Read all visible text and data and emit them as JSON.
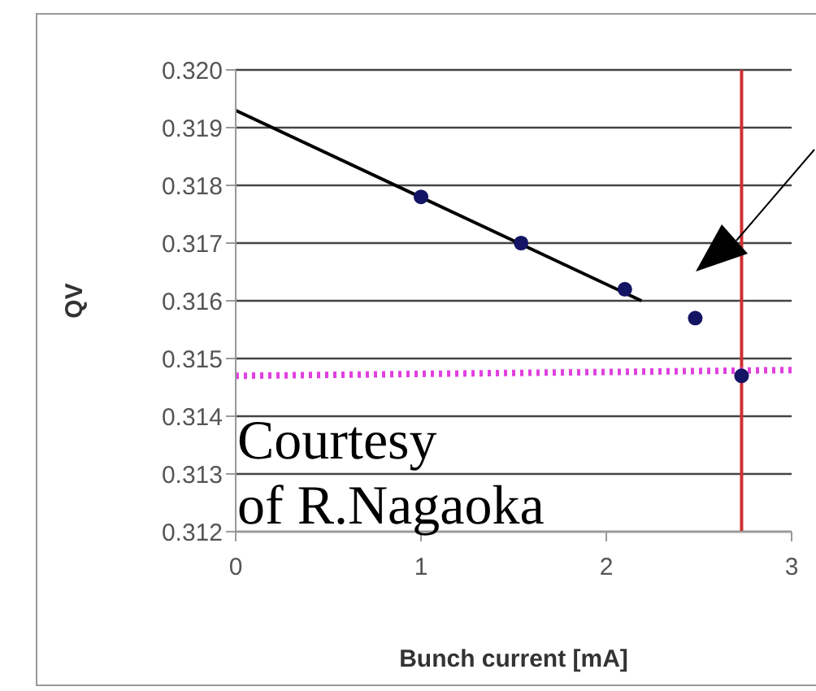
{
  "chart_data": {
    "type": "scatter",
    "xlabel": "Bunch current [mA]",
    "ylabel": "QV",
    "xlim": [
      0,
      3
    ],
    "xticks": [
      0,
      1,
      2,
      3
    ],
    "ylim": [
      0.312,
      0.32
    ],
    "yticks": [
      {
        "value": 0.312,
        "label": "0.312"
      },
      {
        "value": 0.313,
        "label": "0.313"
      },
      {
        "value": 0.314,
        "label": "0.314"
      },
      {
        "value": 0.315,
        "label": "0.315"
      },
      {
        "value": 0.316,
        "label": "0.316"
      },
      {
        "value": 0.317,
        "label": "0.317"
      },
      {
        "value": 0.318,
        "label": "0.318"
      },
      {
        "value": 0.319,
        "label": "0.319"
      },
      {
        "value": 0.32,
        "label": "0.320"
      }
    ],
    "grid": "y",
    "marker": "circle",
    "series": [
      {
        "color": "#141464",
        "x": [
          1,
          1.54,
          2.1,
          2.48,
          2.73
        ],
        "values": [
          0.3178,
          0.317,
          0.3162,
          0.3157,
          0.3147
        ]
      },
      {
        "type": "line",
        "color": "#000000",
        "x": [
          0,
          2.19
        ],
        "values": [
          0.3193,
          0.316
        ],
        "line_style": "solid",
        "marker": "none"
      },
      {
        "type": "line",
        "color": "#e040e0",
        "x": [
          0,
          3
        ],
        "values": [
          0.3147,
          0.3148
        ],
        "line_style": "dotted",
        "marker": "none"
      }
    ],
    "ref_lines": [
      {
        "axis": "x",
        "value": 2.73,
        "color": "#d03030"
      }
    ],
    "annotations": [
      "Courtesy\nof R.Nagaoka"
    ]
  }
}
